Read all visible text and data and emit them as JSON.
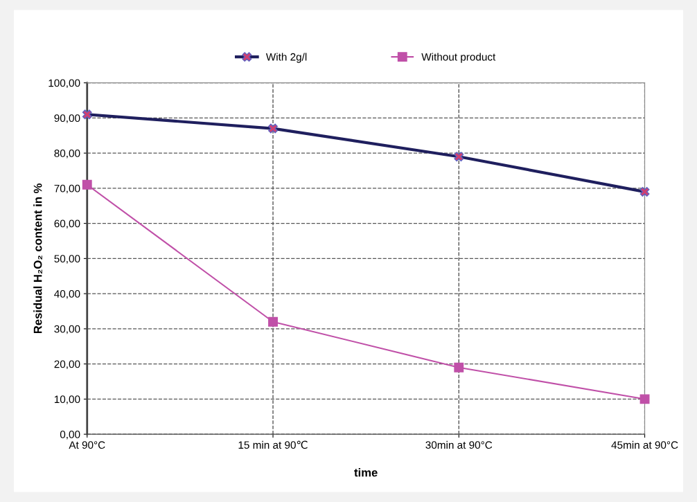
{
  "chart_data": {
    "type": "line",
    "xlabel": "time",
    "ylabel": "Residual H₂O₂ content in %",
    "categories": [
      "At 90°C",
      "15 min at 90℃",
      "30min at 90°C",
      "45min at 90°C"
    ],
    "series": [
      {
        "name": "With 2g/l",
        "color": "#1f1f5e",
        "marker": "cross",
        "values": [
          91,
          87,
          79,
          69
        ]
      },
      {
        "name": "Without product",
        "color": "#c050a8",
        "marker": "square",
        "values": [
          71,
          32,
          19,
          10
        ]
      }
    ],
    "ylim": [
      0,
      100
    ],
    "yticks": [
      {
        "value": 0,
        "label": "0,00"
      },
      {
        "value": 10,
        "label": "10,00"
      },
      {
        "value": 20,
        "label": "20,00"
      },
      {
        "value": 30,
        "label": "30,00"
      },
      {
        "value": 40,
        "label": "40,00"
      },
      {
        "value": 50,
        "label": "50,00"
      },
      {
        "value": 60,
        "label": "60,00"
      },
      {
        "value": 70,
        "label": "70,00"
      },
      {
        "value": 80,
        "label": "80,00"
      },
      {
        "value": 90,
        "label": "90,00"
      },
      {
        "value": 100,
        "label": "100,00"
      }
    ],
    "grid": true,
    "legend": "top",
    "line_style": "solid"
  }
}
